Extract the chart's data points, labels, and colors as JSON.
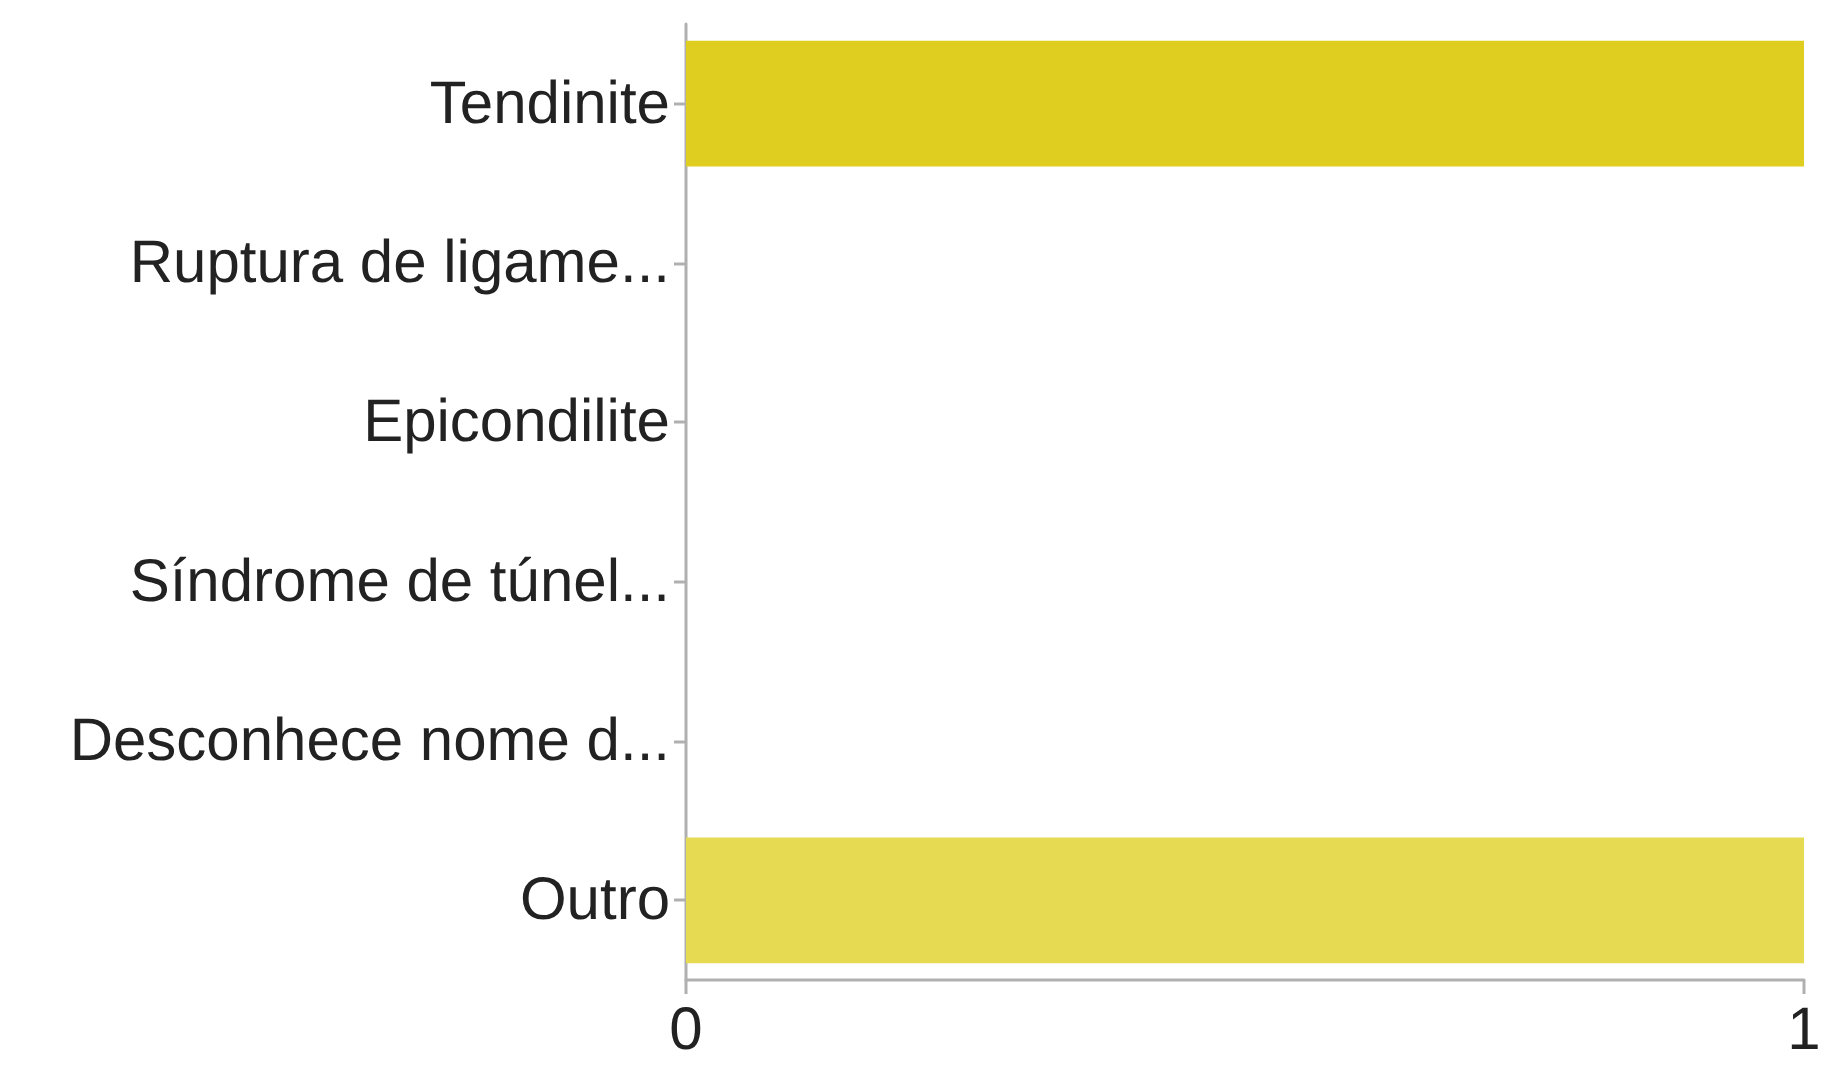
{
  "chart_data": {
    "type": "bar",
    "orientation": "horizontal",
    "categories": [
      "Tendinite",
      "Ruptura de ligame...",
      "Epicondilite",
      "Síndrome de túnel...",
      "Desconhece nome d...",
      "Outro"
    ],
    "values": [
      1,
      0,
      0,
      0,
      0,
      1
    ],
    "colors": [
      "#dfce1f",
      null,
      null,
      null,
      null,
      "#e5da52"
    ],
    "xlim": [
      0,
      1
    ],
    "xticks": [
      0,
      1
    ]
  }
}
